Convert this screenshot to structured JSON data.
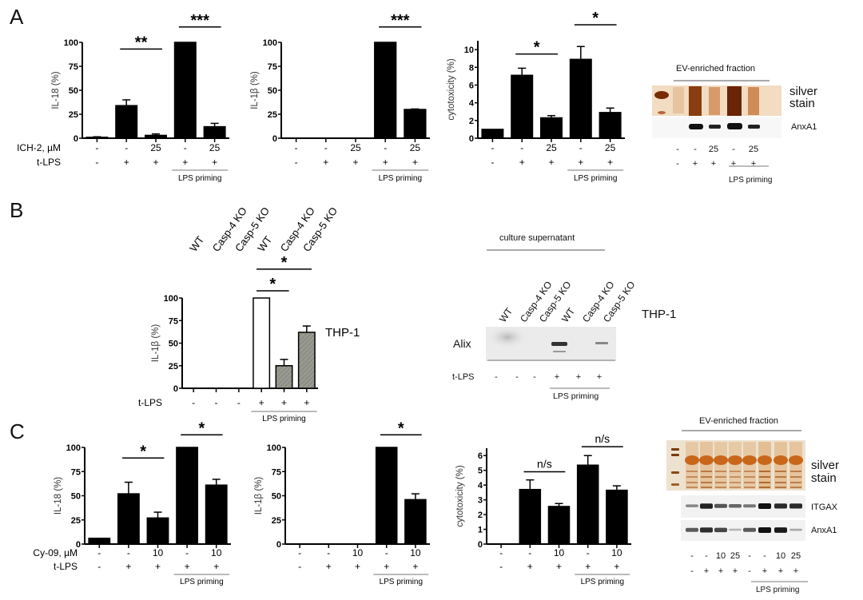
{
  "panels": [
    {
      "letter": "A"
    },
    {
      "letter": "B"
    },
    {
      "letter": "C"
    }
  ],
  "chart_data": [
    {
      "id": "A1",
      "type": "bar",
      "panel": "A",
      "ylabel": "IL-18 (%)",
      "ylim": [
        0,
        100
      ],
      "yticks": [
        "0",
        "25",
        "50",
        "75",
        "100"
      ],
      "ytick_values": [
        0,
        25,
        50,
        75,
        100
      ],
      "row_labels": [
        "ICH-2, µM",
        "t-LPS"
      ],
      "rows": [
        [
          "-",
          "-",
          "25",
          "-",
          "25"
        ],
        [
          "-",
          "+",
          "+",
          "+",
          "+"
        ]
      ],
      "priming_label": "LPS priming",
      "priming_span": [
        3,
        4
      ],
      "values": [
        1,
        34,
        3,
        100,
        12
      ],
      "errors": [
        0.5,
        6,
        1.5,
        0,
        3.5
      ],
      "fills": [
        "#000",
        "#000",
        "#000",
        "#000",
        "#000"
      ],
      "sig": [
        {
          "from": 1,
          "to": 2,
          "label": "**",
          "level": 93
        },
        {
          "from": 3,
          "to": 4,
          "label": "***",
          "level": 116
        }
      ]
    },
    {
      "id": "A2",
      "type": "bar",
      "panel": "A",
      "ylabel": "IL-1β (%)",
      "ylim": [
        0,
        100
      ],
      "yticks": [
        "0",
        "25",
        "50",
        "75",
        "100"
      ],
      "ytick_values": [
        0,
        25,
        50,
        75,
        100
      ],
      "row_labels": [
        "",
        ""
      ],
      "rows": [
        [
          "-",
          "-",
          "25",
          "-",
          "25"
        ],
        [
          "-",
          "+",
          "+",
          "+",
          "+"
        ]
      ],
      "priming_label": "LPS priming",
      "priming_span": [
        3,
        4
      ],
      "values": [
        0,
        0,
        0,
        100,
        30
      ],
      "errors": [
        0,
        0,
        0,
        0,
        0.5
      ],
      "fills": [
        "#000",
        "#000",
        "#000",
        "#000",
        "#000"
      ],
      "sig": [
        {
          "from": 3,
          "to": 4,
          "label": "***",
          "level": 116
        }
      ]
    },
    {
      "id": "A3",
      "type": "bar",
      "panel": "A",
      "ylabel": "cytotoxicity (%)",
      "ylim": [
        0,
        11
      ],
      "yticks": [
        "0",
        "2",
        "4",
        "6",
        "8",
        "10"
      ],
      "ytick_values": [
        0,
        2,
        4,
        6,
        8,
        10
      ],
      "row_labels": [
        "",
        ""
      ],
      "rows": [
        [
          "-",
          "-",
          "25",
          "-",
          "25"
        ],
        [
          "-",
          "+",
          "+",
          "+",
          "+"
        ]
      ],
      "priming_label": "LPS priming",
      "priming_span": [
        3,
        4
      ],
      "values": [
        1,
        7.1,
        2.3,
        8.9,
        2.9
      ],
      "errors": [
        0,
        0.8,
        0.25,
        1.45,
        0.5
      ],
      "fills": [
        "#000",
        "#000",
        "#000",
        "#000",
        "#000"
      ],
      "sig": [
        {
          "from": 1,
          "to": 2,
          "label": "*",
          "level": 9.5
        },
        {
          "from": 3,
          "to": 4,
          "label": "*",
          "level": 12.8
        }
      ]
    },
    {
      "id": "B1",
      "type": "bar",
      "panel": "B",
      "ylabel": "IL-1β (%)",
      "ylim": [
        0,
        100
      ],
      "yticks": [
        "0",
        "25",
        "50",
        "75",
        "100"
      ],
      "ytick_values": [
        0,
        25,
        50,
        75,
        100
      ],
      "categories": [
        "WT",
        "Casp-4 KO",
        "Casp-5 KO",
        "WT",
        "Casp-4 KO",
        "Casp-5 KO"
      ],
      "row_labels": [
        "t-LPS"
      ],
      "rows": [
        [
          "-",
          "-",
          "-",
          "+",
          "+",
          "+"
        ]
      ],
      "priming_label": "LPS priming",
      "priming_span": [
        3,
        5
      ],
      "values": [
        0,
        0,
        0,
        100,
        25,
        62
      ],
      "errors": [
        0,
        0,
        0,
        0,
        7,
        7
      ],
      "fills": [
        "none",
        "none",
        "none",
        "#ffffff",
        "#8e9088",
        "#8e9088"
      ],
      "sig": [
        {
          "from": 3,
          "to": 4,
          "label": "*",
          "level": 108
        },
        {
          "from": 3,
          "to": 5,
          "label": "*",
          "level": 132
        }
      ],
      "annotation": "THP-1"
    },
    {
      "id": "C1",
      "type": "bar",
      "panel": "C",
      "ylabel": "IL-18 (%)",
      "ylim": [
        0,
        100
      ],
      "yticks": [
        "0",
        "25",
        "50",
        "75",
        "100"
      ],
      "ytick_values": [
        0,
        25,
        50,
        75,
        100
      ],
      "row_labels": [
        "Cy-09, µM",
        "t-LPS"
      ],
      "rows": [
        [
          "-",
          "-",
          "10",
          "-",
          "10"
        ],
        [
          "-",
          "+",
          "+",
          "+",
          "+"
        ]
      ],
      "priming_label": "LPS priming",
      "priming_span": [
        3,
        4
      ],
      "values": [
        6,
        52,
        27,
        100,
        61
      ],
      "errors": [
        0,
        12,
        6,
        0,
        6
      ],
      "fills": [
        "#000",
        "#000",
        "#000",
        "#000",
        "#000"
      ],
      "sig": [
        {
          "from": 1,
          "to": 2,
          "label": "*",
          "level": 89
        },
        {
          "from": 3,
          "to": 4,
          "label": "*",
          "level": 113
        }
      ]
    },
    {
      "id": "C2",
      "type": "bar",
      "panel": "C",
      "ylabel": "IL-1β (%)",
      "ylim": [
        0,
        100
      ],
      "yticks": [
        "0",
        "25",
        "50",
        "75",
        "100"
      ],
      "ytick_values": [
        0,
        25,
        50,
        75,
        100
      ],
      "row_labels": [
        "",
        ""
      ],
      "rows": [
        [
          "-",
          "-",
          "10",
          "-",
          "10"
        ],
        [
          "-",
          "+",
          "+",
          "+",
          "+"
        ]
      ],
      "priming_label": "LPS priming",
      "priming_span": [
        3,
        4
      ],
      "values": [
        0,
        0,
        0,
        100,
        46
      ],
      "errors": [
        0,
        0,
        0,
        0,
        6
      ],
      "fills": [
        "#000",
        "#000",
        "#000",
        "#000",
        "#000"
      ],
      "sig": [
        {
          "from": 3,
          "to": 4,
          "label": "*",
          "level": 113
        }
      ]
    },
    {
      "id": "C3",
      "type": "bar",
      "panel": "C",
      "ylabel": "cytotoxicity (%)",
      "ylim": [
        0,
        6.5
      ],
      "yticks": [
        "0",
        "1",
        "2",
        "3",
        "4",
        "5",
        "6"
      ],
      "ytick_values": [
        0,
        1,
        2,
        3,
        4,
        5,
        6
      ],
      "row_labels": [
        "",
        ""
      ],
      "rows": [
        [
          "-",
          "-",
          "10",
          "-",
          "10"
        ],
        [
          "-",
          "+",
          "+",
          "+",
          "+"
        ]
      ],
      "priming_label": "LPS priming",
      "priming_span": [
        3,
        4
      ],
      "values": [
        0,
        3.7,
        2.55,
        5.35,
        3.65
      ],
      "errors": [
        0,
        0.65,
        0.2,
        0.65,
        0.3
      ],
      "fills": [
        "#000",
        "#000",
        "#000",
        "#000",
        "#000"
      ],
      "sig": [
        {
          "from": 1,
          "to": 2,
          "label": "n/s",
          "level": 4.9
        },
        {
          "from": 3,
          "to": 4,
          "label": "n/s",
          "level": 6.6
        }
      ]
    }
  ],
  "blots": {
    "A": {
      "header": "EV-enriched fraction",
      "labels": [
        "silver stain",
        "AnxA1"
      ],
      "rows": [
        [
          "-",
          "-",
          "25",
          "-",
          "25"
        ],
        [
          "-",
          "+",
          "+",
          "+",
          "+"
        ]
      ],
      "priming_label": "LPS priming"
    },
    "B": {
      "header": "culture supernatant",
      "lanes": [
        "WT",
        "Casp-4 KO",
        "Casp-5 KO",
        "WT",
        "Casp-4 KO",
        "Casp-5 KO"
      ],
      "label": "Alix",
      "annotation": "THP-1",
      "row_label": "t-LPS",
      "rows": [
        [
          "-",
          "-",
          "-",
          "+",
          "+",
          "+"
        ]
      ],
      "priming_label": "LPS priming"
    },
    "C": {
      "header": "EV-enriched fraction",
      "labels": [
        "silver stain",
        "ITGAX",
        "AnxA1"
      ],
      "rows": [
        [
          "-",
          "-",
          "10",
          "25",
          "-",
          "-",
          "10",
          "25"
        ],
        [
          "-",
          "+",
          "+",
          "+",
          "-",
          "+",
          "+",
          "+"
        ]
      ],
      "priming_label": "LPS priming"
    }
  }
}
